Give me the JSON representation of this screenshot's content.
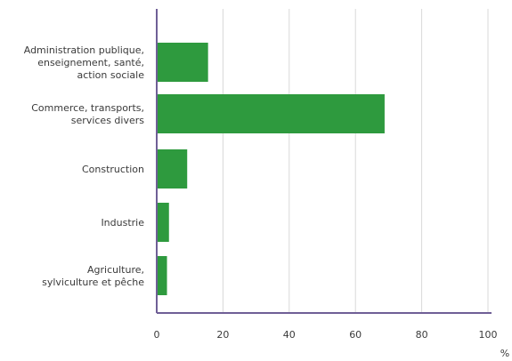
{
  "chart_data": {
    "type": "bar",
    "orientation": "horizontal",
    "categories": [
      [
        "Administration publique,",
        "enseignement, santé,",
        "action sociale"
      ],
      [
        "Commerce, transports,",
        "services divers"
      ],
      [
        "Construction"
      ],
      [
        "Industrie"
      ],
      [
        "Agriculture,",
        "sylviculture et pêche"
      ]
    ],
    "values": [
      15.5,
      68.8,
      9.2,
      3.7,
      3.1
    ],
    "xlim": [
      0,
      100
    ],
    "xticks": [
      "0",
      "20",
      "40",
      "60",
      "80",
      "100"
    ],
    "xunit": "%",
    "title": "",
    "xlabel": "",
    "ylabel": "",
    "grid": "vertical",
    "colors": {
      "bar": "#2e9a3e",
      "grid": "#d9d9d9",
      "axis": "#6f5f96"
    }
  }
}
